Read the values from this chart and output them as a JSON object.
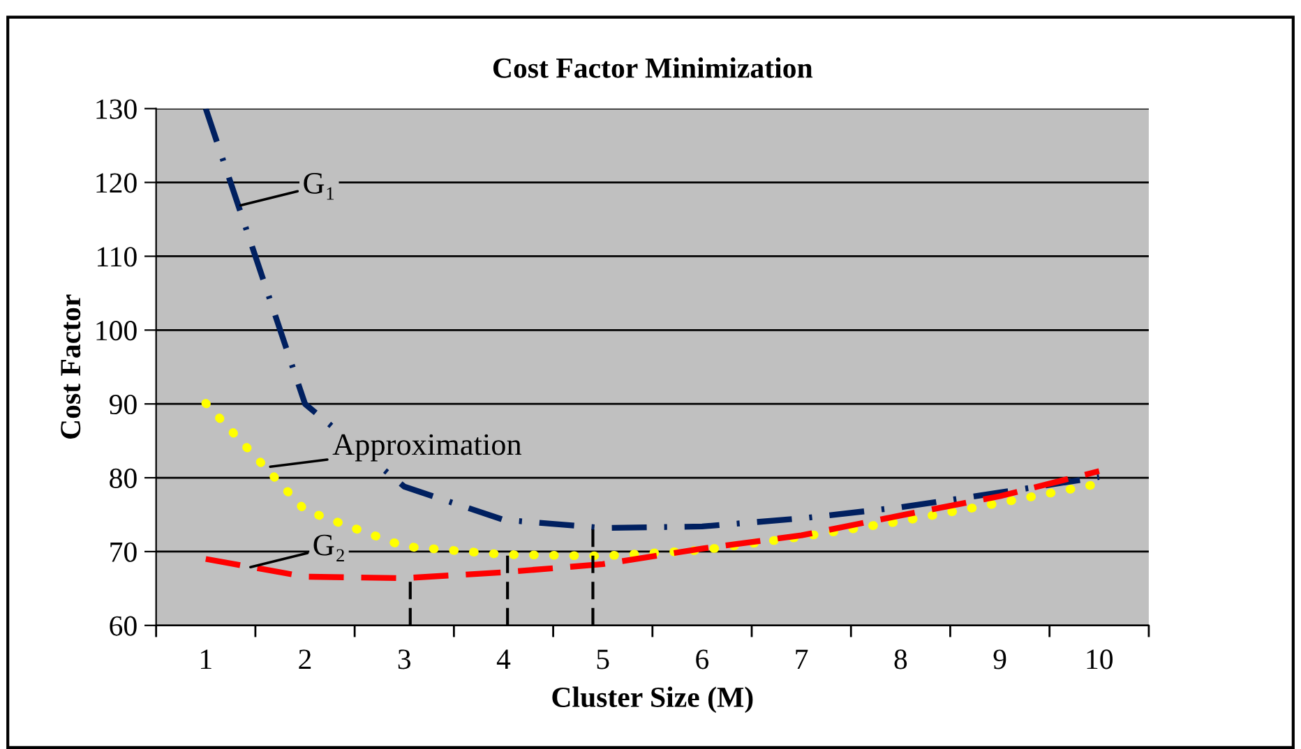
{
  "chart_data": {
    "type": "line",
    "title": "Cost Factor Minimization",
    "xlabel": "Cluster Size (M)",
    "ylabel": "Cost Factor",
    "x": [
      1,
      2,
      3,
      4,
      5,
      6,
      7,
      8,
      9,
      10
    ],
    "xlim": [
      0.5,
      10.5
    ],
    "xticks": [
      {
        "value": 0.5,
        "label": null
      },
      1,
      {
        "value": 1.5,
        "label": null
      },
      2,
      {
        "value": 2.5,
        "label": null
      },
      3,
      {
        "value": 3.5,
        "label": null
      },
      4,
      {
        "value": 4.5,
        "label": null
      },
      5,
      {
        "value": 5.5,
        "label": null
      },
      6,
      {
        "value": 6.5,
        "label": null
      },
      7,
      {
        "value": 7.5,
        "label": null
      },
      8,
      {
        "value": 8.5,
        "label": null
      },
      9,
      {
        "value": 9.5,
        "label": null
      },
      10,
      {
        "value": 10.5,
        "label": null
      }
    ],
    "ylim": [
      60,
      130
    ],
    "yticks": [
      60,
      70,
      80,
      90,
      100,
      110,
      120,
      130
    ],
    "grid": "y",
    "legend": false,
    "marker": "none",
    "series": [
      {
        "color": "#002060",
        "line_style": "dashdot",
        "values": [
          130,
          90,
          78.8,
          74.3,
          73.2,
          73.4,
          74.5,
          76,
          78,
          80.1
        ]
      },
      {
        "color": "#ffff00",
        "line_style": "dotted",
        "values": [
          90.1,
          75.6,
          70.7,
          69.6,
          69.4,
          70.2,
          72,
          74.1,
          76.6,
          79.2
        ]
      },
      {
        "color": "#ff0000",
        "line_style": "dashed",
        "values": [
          69,
          66.6,
          66.4,
          67.2,
          68.3,
          70.4,
          72.2,
          74.9,
          77.5,
          80.9
        ]
      },
      {
        "color": "#000000",
        "line_style": "dashed",
        "x": [
          3.06,
          3.06
        ],
        "values": [
          60,
          66.4
        ]
      },
      {
        "color": "#000000",
        "line_style": "dashed",
        "x": [
          4.04,
          4.04
        ],
        "values": [
          60,
          69.6
        ]
      },
      {
        "color": "#000000",
        "line_style": "dashed",
        "x": [
          4.9,
          4.9
        ],
        "values": [
          60,
          73.2
        ]
      }
    ],
    "annotations": [
      {
        "text": "G₁",
        "x": 1.35,
        "y": 116.9
      },
      {
        "text": "Approximation",
        "x": 1.65,
        "y": 81.5
      },
      {
        "text": "G₂",
        "x": 1.45,
        "y": 67.9
      }
    ]
  }
}
